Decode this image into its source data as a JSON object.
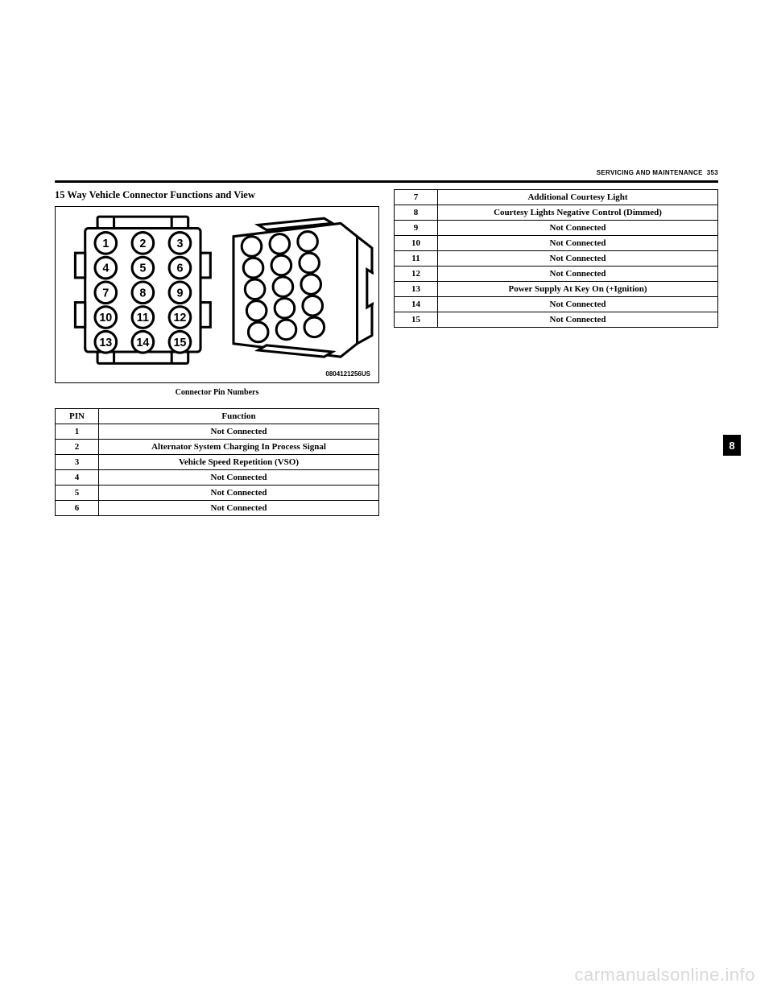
{
  "header": {
    "section_label": "SERVICING AND MAINTENANCE",
    "page_number": "353"
  },
  "left": {
    "section_title": "15 Way Vehicle Connector Functions and View",
    "figure_caption": "Connector Pin Numbers",
    "image_code": "0804121256US",
    "table": {
      "columns": [
        "PIN",
        "Function"
      ],
      "rows": [
        [
          "1",
          "Not Connected"
        ],
        [
          "2",
          "Alternator System Charging In Process Signal"
        ],
        [
          "3",
          "Vehicle Speed Repetition (VSO)"
        ],
        [
          "4",
          "Not Connected"
        ],
        [
          "5",
          "Not Connected"
        ],
        [
          "6",
          "Not Connected"
        ]
      ]
    }
  },
  "right": {
    "table": {
      "rows": [
        [
          "7",
          "Additional Courtesy Light"
        ],
        [
          "8",
          "Courtesy Lights Negative Control (Dimmed)"
        ],
        [
          "9",
          "Not Connected"
        ],
        [
          "10",
          "Not Connected"
        ],
        [
          "11",
          "Not Connected"
        ],
        [
          "12",
          "Not Connected"
        ],
        [
          "13",
          "Power Supply At Key On (+Ignition)"
        ],
        [
          "14",
          "Not Connected"
        ],
        [
          "15",
          "Not Connected"
        ]
      ]
    }
  },
  "side_tab": "8",
  "watermark": "carmanualsonline.info",
  "connector_diagram": {
    "pin_labels": [
      "1",
      "2",
      "3",
      "4",
      "5",
      "6",
      "7",
      "8",
      "9",
      "10",
      "11",
      "12",
      "13",
      "14",
      "15"
    ],
    "stroke": "#000000",
    "fill": "#ffffff",
    "label_font_size": 14
  }
}
